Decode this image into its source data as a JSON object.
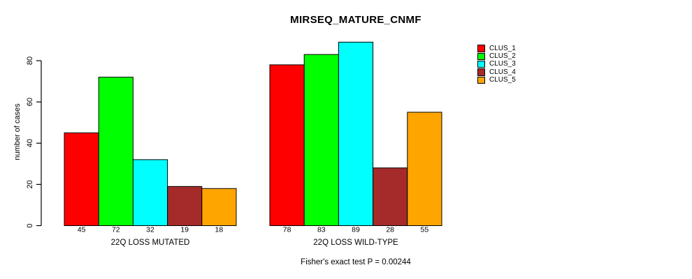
{
  "chart_data": {
    "type": "bar",
    "title": "MIRSEQ_MATURE_CNMF",
    "ylabel": "number of cases",
    "xlabel": "",
    "categories": [
      "22Q LOSS MUTATED",
      "22Q LOSS WILD-TYPE"
    ],
    "series": [
      {
        "name": "CLUS_1",
        "color": "#FF0000",
        "values": [
          45,
          78
        ]
      },
      {
        "name": "CLUS_2",
        "color": "#00FF00",
        "values": [
          72,
          83
        ]
      },
      {
        "name": "CLUS_3",
        "color": "#00FFFF",
        "values": [
          32,
          89
        ]
      },
      {
        "name": "CLUS_4",
        "color": "#A52A2A",
        "values": [
          19,
          28
        ]
      },
      {
        "name": "CLUS_5",
        "color": "#FFA500",
        "values": [
          18,
          55
        ]
      }
    ],
    "yticks": [
      0,
      20,
      40,
      60,
      80
    ],
    "ylim": [
      0,
      89
    ],
    "bar_value_labels_shown": true,
    "grid": false,
    "legend_position": "right-outside",
    "legend_entries": [
      "CLUS_1",
      "CLUS_2",
      "CLUS_3",
      "CLUS_4",
      "CLUS_5"
    ],
    "annotation": "Fisher's exact test P = 0.00244",
    "axis_color": "#000000",
    "bar_border_color": "#000000",
    "background_color": "#FFFFFF"
  }
}
